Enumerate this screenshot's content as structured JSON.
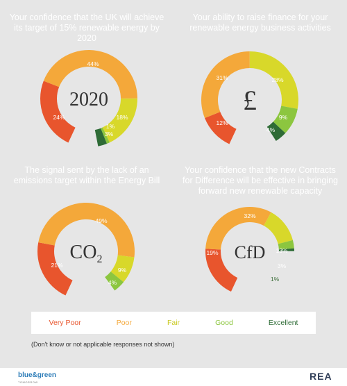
{
  "colors": {
    "very_poor": "#e8552d",
    "poor": "#f4a83a",
    "fair": "#d8d82a",
    "good": "#8cc63f",
    "excellent": "#2e6b36",
    "background": "#e6e6e6"
  },
  "legend": {
    "very_poor": "Very Poor",
    "poor": "Poor",
    "fair": "Fair",
    "good": "Good",
    "excellent": "Excellent"
  },
  "note": "(Don't know or not applicable responses not shown)",
  "footer": {
    "logo_left": "blue&green",
    "logo_left_sub": "TOMORROW",
    "logo_right": "REA"
  },
  "chart_data": [
    {
      "type": "pie",
      "title": "Your confidence that the UK will achieve its target of 15% renewable energy by 2020",
      "center_label": "2020",
      "categories": [
        "Very Poor",
        "Poor",
        "Fair",
        "Good",
        "Excellent"
      ],
      "values": [
        24,
        44,
        18,
        1,
        3
      ],
      "labels": [
        "24%",
        "44%",
        "18%",
        "1%",
        "3%"
      ]
    },
    {
      "type": "pie",
      "title": "Your ability to raise finance for your renewable energy business activities",
      "center_label": "£",
      "categories": [
        "Very Poor",
        "Poor",
        "Fair",
        "Good",
        "Excellent"
      ],
      "values": [
        12,
        31,
        28,
        9,
        4
      ],
      "labels": [
        "12%",
        "31%",
        "28%",
        "9%",
        "4%"
      ]
    },
    {
      "type": "pie",
      "title": "The signal sent by the lack of an emissions target within the Energy Bill",
      "center_label": "CO",
      "center_sub": "2",
      "categories": [
        "Very Poor",
        "Poor",
        "Fair",
        "Good",
        "Excellent"
      ],
      "values": [
        21,
        49,
        9,
        4,
        0
      ],
      "labels": [
        "21%",
        "49%",
        "9%",
        "4%",
        ""
      ]
    },
    {
      "type": "pie",
      "title": "Your confidence that the new Contracts for Difference will be effective in bringing forward new renewable capacity",
      "center_label": "CfD",
      "categories": [
        "Very Poor",
        "Poor",
        "Fair",
        "Good",
        "Excellent"
      ],
      "values": [
        19,
        32,
        13,
        3,
        1
      ],
      "labels": [
        "19%",
        "32%",
        "13%",
        "3%",
        "1%"
      ]
    }
  ]
}
